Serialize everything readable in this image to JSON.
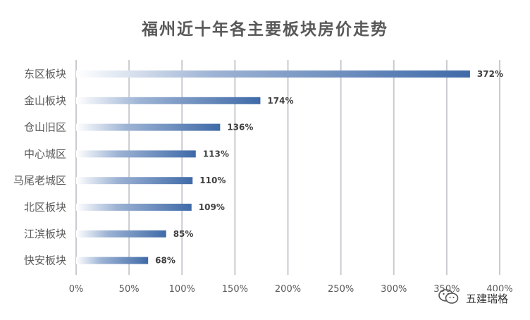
{
  "chart_data": {
    "type": "bar",
    "orientation": "horizontal",
    "title": "福州近十年各主要板块房价走势",
    "categories": [
      "东区板块",
      "金山板块",
      "仓山旧区",
      "中心城区",
      "马尾老城区",
      "北区板块",
      "江滨板块",
      "快安板块"
    ],
    "values": [
      372,
      174,
      136,
      113,
      110,
      109,
      85,
      68
    ],
    "value_labels": [
      "372%",
      "174%",
      "136%",
      "113%",
      "110%",
      "109%",
      "85%",
      "68%"
    ],
    "unit": "%",
    "xlim": [
      0,
      400
    ],
    "xticks": [
      "0%",
      "50%",
      "100%",
      "150%",
      "200%",
      "250%",
      "300%",
      "350%",
      "400%"
    ],
    "grid": true,
    "bar_color": "#3f6aa8"
  },
  "watermark": {
    "text": "五建瑞格",
    "icon": "wechat-icon"
  }
}
